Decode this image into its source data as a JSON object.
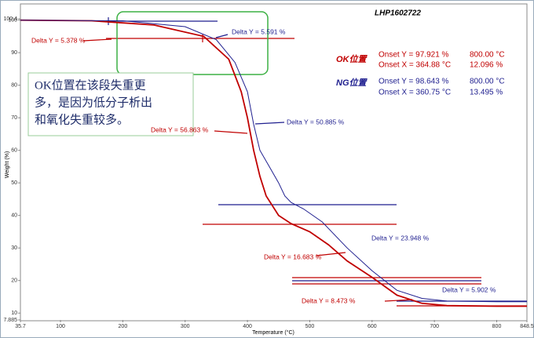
{
  "chart_data": {
    "type": "line",
    "title": "LHP1602722",
    "x_label": "Temperature (°C)",
    "y_label": "Weight (%)",
    "xlim": [
      35.7,
      848.5
    ],
    "ylim": [
      7.885,
      100.4
    ],
    "xticks": [
      35.7,
      100,
      200,
      300,
      400,
      500,
      600,
      700,
      800,
      848.5
    ],
    "yticks": [
      7.885,
      10,
      20,
      30,
      40,
      50,
      60,
      70,
      80,
      90,
      100,
      100.4
    ],
    "series": [
      {
        "name": "OK位置",
        "color": "#c00000",
        "x": [
          35.7,
          150,
          250,
          330,
          370,
          390,
          400,
          410,
          420,
          430,
          450,
          470,
          500,
          530,
          560,
          600,
          640,
          680,
          720,
          800,
          848.5
        ],
        "values": [
          100,
          99.8,
          98.5,
          95,
          88,
          78,
          70,
          60,
          52,
          46,
          40,
          37.5,
          35,
          31,
          26,
          21,
          15.5,
          13,
          12.3,
          12.1,
          12.1
        ]
      },
      {
        "name": "NG位置",
        "color": "#1f1f8f",
        "x": [
          35.7,
          200,
          300,
          350,
          380,
          400,
          410,
          420,
          435,
          450,
          460,
          470,
          490,
          520,
          560,
          600,
          640,
          680,
          720,
          800,
          848.5
        ],
        "values": [
          100,
          99.8,
          98,
          94,
          87,
          78,
          68,
          60,
          55,
          50,
          46,
          44,
          42,
          38,
          30,
          23,
          17,
          14.5,
          13.7,
          13.5,
          13.5
        ]
      }
    ],
    "results": [
      {
        "onset_y": "Onset Y = 97.921 %",
        "onset_x": "Onset X = 364.88 °C",
        "temperature": "800.00 °C",
        "residue": "12.096 %"
      },
      {
        "onset_y": "Onset Y = 98.643 %",
        "onset_x": "Onset X = 360.75 °C",
        "temperature": "800.00 °C",
        "residue": "13.495 %"
      }
    ],
    "annotations": [
      {
        "text": "Delta Y = 5.378 %",
        "color": "#c00000"
      },
      {
        "text": "Delta Y = 5.591 %",
        "color": "#1f1f8f"
      },
      {
        "text": "Delta Y = 56.863 %",
        "color": "#c00000"
      },
      {
        "text": "Delta Y = 50.885 %",
        "color": "#1f1f8f"
      },
      {
        "text": "Delta Y = 23.948 %",
        "color": "#1f1f8f"
      },
      {
        "text": "Delta Y = 16.683 %",
        "color": "#c00000"
      },
      {
        "text": "Delta Y = 5.902 %",
        "color": "#1f1f8f"
      },
      {
        "text": "Delta Y = 8.473 %",
        "color": "#c00000"
      }
    ],
    "note": [
      "OK位置在该段失重更",
      "多，是因为低分子析出",
      "和氧化失重较多。"
    ]
  }
}
